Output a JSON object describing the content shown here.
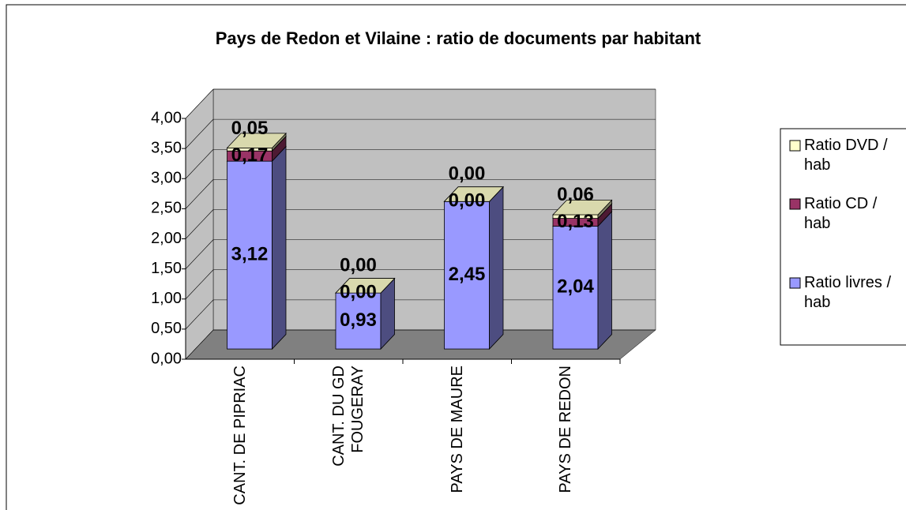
{
  "chart_data": {
    "type": "bar",
    "stacked": true,
    "three_d": true,
    "title": "Pays de Redon et Vilaine : ratio de documents par habitant",
    "categories": [
      "CANT. DE PIPRIAC",
      "CANT. DU GD FOUGERAY",
      "PAYS DE MAURE",
      "PAYS DE REDON"
    ],
    "series": [
      {
        "name": "Ratio livres / hab",
        "color": "#9999ff",
        "values": [
          3.12,
          0.93,
          2.45,
          2.04
        ],
        "value_labels": [
          "3,12",
          "0,93",
          "2,45",
          "2,04"
        ]
      },
      {
        "name": "Ratio CD / hab",
        "color": "#993366",
        "values": [
          0.17,
          0,
          0,
          0.13
        ],
        "value_labels": [
          "0,17",
          "0,00",
          "0,00",
          "0,13"
        ]
      },
      {
        "name": "Ratio DVD / hab",
        "color": "#ffffcc",
        "values": [
          0.05,
          0,
          0,
          0.06
        ],
        "value_labels": [
          "0,05",
          "0,00",
          "0,00",
          "0,06"
        ]
      }
    ],
    "ylim": [
      0,
      4
    ],
    "yticks": [
      {
        "value": 0,
        "label": "0,00"
      },
      {
        "value": 0.5,
        "label": "0,50"
      },
      {
        "value": 1,
        "label": "1,00"
      },
      {
        "value": 1.5,
        "label": "1,50"
      },
      {
        "value": 2,
        "label": "2,00"
      },
      {
        "value": 2.5,
        "label": "2,50"
      },
      {
        "value": 3,
        "label": "3,00"
      },
      {
        "value": 3.5,
        "label": "3,50"
      },
      {
        "value": 4,
        "label": "4,00"
      }
    ],
    "grid": true,
    "legend": "right"
  }
}
